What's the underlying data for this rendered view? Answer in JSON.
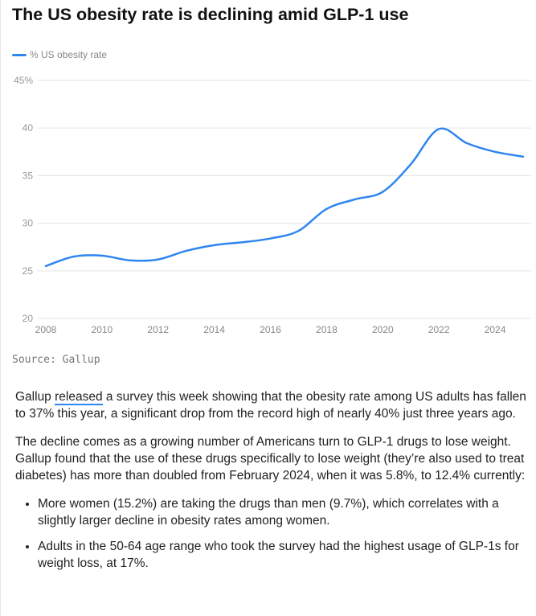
{
  "title": "The US obesity rate is declining amid GLP-1 use",
  "source": "Source: Gallup",
  "chart_data": {
    "type": "line",
    "title": "The US obesity rate is declining amid GLP-1 use",
    "legend": [
      "% US obesity rate"
    ],
    "legend_position": "top-left",
    "x": [
      2008,
      2009,
      2010,
      2011,
      2012,
      2013,
      2014,
      2015,
      2016,
      2017,
      2018,
      2019,
      2020,
      2021,
      2022,
      2023,
      2024,
      2025
    ],
    "series": [
      {
        "name": "% US obesity rate",
        "color": "#2f86f0",
        "values": [
          25.5,
          26.5,
          26.6,
          26.1,
          26.2,
          27.1,
          27.7,
          28.0,
          28.4,
          29.2,
          31.5,
          32.5,
          33.3,
          36.2,
          39.9,
          38.4,
          37.5,
          37.0
        ]
      }
    ],
    "xticks": [
      "2008",
      "2010",
      "2012",
      "2014",
      "2016",
      "2018",
      "2020",
      "2022",
      "2024"
    ],
    "yticks": [
      "20",
      "25",
      "30",
      "35",
      "40",
      "45%"
    ],
    "ylim": [
      20,
      45
    ],
    "xlim": [
      2008,
      2025
    ],
    "grid": true,
    "xlabel": "",
    "ylabel": ""
  },
  "article": {
    "p1_pre": "Gallup ",
    "p1_link": "released",
    "p1_post": " a survey this week showing that the obesity rate among US adults has fallen to 37% this year, a significant drop from the record high of nearly 40% just three years ago.",
    "p2": "The decline comes as a growing number of Americans turn to GLP-1 drugs to lose weight. Gallup found that the use of these drugs specifically to lose weight (they’re also used to treat diabetes) has more than doubled from February 2024, when it was 5.8%, to 12.4% currently:",
    "bullets": [
      "More women (15.2%) are taking the drugs than men (9.7%), which correlates with a slightly larger decline in obesity rates among women.",
      "Adults in the 50-64 age range who took the survey had the highest usage of GLP-1s for weight loss, at 17%."
    ]
  }
}
